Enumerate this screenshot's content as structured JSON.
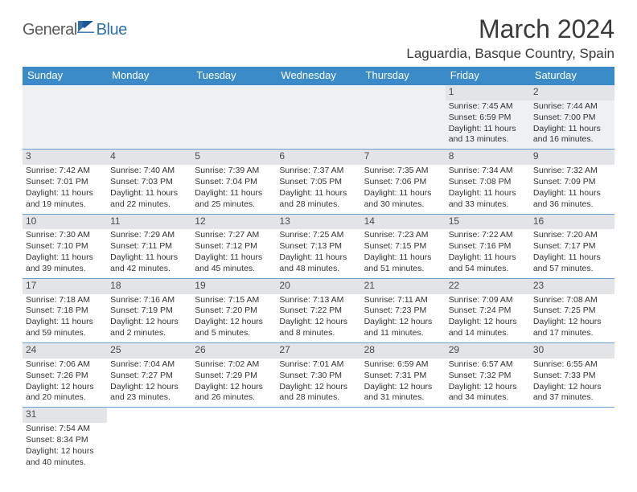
{
  "logo": {
    "word1": "General",
    "word2": "Blue",
    "color1": "#5a5a5a",
    "color2": "#2f6fb0"
  },
  "title": "March 2024",
  "location": "Laguardia, Basque Country, Spain",
  "colors": {
    "header_bg": "#3b8bc9",
    "header_fg": "#ffffff",
    "daynum_bg": "#e2e4e7",
    "rule": "#6a9fd0",
    "firstrow_bg": "#eef0f2"
  },
  "day_headers": [
    "Sunday",
    "Monday",
    "Tuesday",
    "Wednesday",
    "Thursday",
    "Friday",
    "Saturday"
  ],
  "weeks": [
    [
      null,
      null,
      null,
      null,
      null,
      {
        "n": "1",
        "sunrise": "7:45 AM",
        "sunset": "6:59 PM",
        "dl_h": 11,
        "dl_m": 13
      },
      {
        "n": "2",
        "sunrise": "7:44 AM",
        "sunset": "7:00 PM",
        "dl_h": 11,
        "dl_m": 16
      }
    ],
    [
      {
        "n": "3",
        "sunrise": "7:42 AM",
        "sunset": "7:01 PM",
        "dl_h": 11,
        "dl_m": 19
      },
      {
        "n": "4",
        "sunrise": "7:40 AM",
        "sunset": "7:03 PM",
        "dl_h": 11,
        "dl_m": 22
      },
      {
        "n": "5",
        "sunrise": "7:39 AM",
        "sunset": "7:04 PM",
        "dl_h": 11,
        "dl_m": 25
      },
      {
        "n": "6",
        "sunrise": "7:37 AM",
        "sunset": "7:05 PM",
        "dl_h": 11,
        "dl_m": 28
      },
      {
        "n": "7",
        "sunrise": "7:35 AM",
        "sunset": "7:06 PM",
        "dl_h": 11,
        "dl_m": 30
      },
      {
        "n": "8",
        "sunrise": "7:34 AM",
        "sunset": "7:08 PM",
        "dl_h": 11,
        "dl_m": 33
      },
      {
        "n": "9",
        "sunrise": "7:32 AM",
        "sunset": "7:09 PM",
        "dl_h": 11,
        "dl_m": 36
      }
    ],
    [
      {
        "n": "10",
        "sunrise": "7:30 AM",
        "sunset": "7:10 PM",
        "dl_h": 11,
        "dl_m": 39
      },
      {
        "n": "11",
        "sunrise": "7:29 AM",
        "sunset": "7:11 PM",
        "dl_h": 11,
        "dl_m": 42
      },
      {
        "n": "12",
        "sunrise": "7:27 AM",
        "sunset": "7:12 PM",
        "dl_h": 11,
        "dl_m": 45
      },
      {
        "n": "13",
        "sunrise": "7:25 AM",
        "sunset": "7:13 PM",
        "dl_h": 11,
        "dl_m": 48
      },
      {
        "n": "14",
        "sunrise": "7:23 AM",
        "sunset": "7:15 PM",
        "dl_h": 11,
        "dl_m": 51
      },
      {
        "n": "15",
        "sunrise": "7:22 AM",
        "sunset": "7:16 PM",
        "dl_h": 11,
        "dl_m": 54
      },
      {
        "n": "16",
        "sunrise": "7:20 AM",
        "sunset": "7:17 PM",
        "dl_h": 11,
        "dl_m": 57
      }
    ],
    [
      {
        "n": "17",
        "sunrise": "7:18 AM",
        "sunset": "7:18 PM",
        "dl_h": 11,
        "dl_m": 59
      },
      {
        "n": "18",
        "sunrise": "7:16 AM",
        "sunset": "7:19 PM",
        "dl_h": 12,
        "dl_m": 2
      },
      {
        "n": "19",
        "sunrise": "7:15 AM",
        "sunset": "7:20 PM",
        "dl_h": 12,
        "dl_m": 5
      },
      {
        "n": "20",
        "sunrise": "7:13 AM",
        "sunset": "7:22 PM",
        "dl_h": 12,
        "dl_m": 8
      },
      {
        "n": "21",
        "sunrise": "7:11 AM",
        "sunset": "7:23 PM",
        "dl_h": 12,
        "dl_m": 11
      },
      {
        "n": "22",
        "sunrise": "7:09 AM",
        "sunset": "7:24 PM",
        "dl_h": 12,
        "dl_m": 14
      },
      {
        "n": "23",
        "sunrise": "7:08 AM",
        "sunset": "7:25 PM",
        "dl_h": 12,
        "dl_m": 17
      }
    ],
    [
      {
        "n": "24",
        "sunrise": "7:06 AM",
        "sunset": "7:26 PM",
        "dl_h": 12,
        "dl_m": 20
      },
      {
        "n": "25",
        "sunrise": "7:04 AM",
        "sunset": "7:27 PM",
        "dl_h": 12,
        "dl_m": 23
      },
      {
        "n": "26",
        "sunrise": "7:02 AM",
        "sunset": "7:29 PM",
        "dl_h": 12,
        "dl_m": 26
      },
      {
        "n": "27",
        "sunrise": "7:01 AM",
        "sunset": "7:30 PM",
        "dl_h": 12,
        "dl_m": 28
      },
      {
        "n": "28",
        "sunrise": "6:59 AM",
        "sunset": "7:31 PM",
        "dl_h": 12,
        "dl_m": 31
      },
      {
        "n": "29",
        "sunrise": "6:57 AM",
        "sunset": "7:32 PM",
        "dl_h": 12,
        "dl_m": 34
      },
      {
        "n": "30",
        "sunrise": "6:55 AM",
        "sunset": "7:33 PM",
        "dl_h": 12,
        "dl_m": 37
      }
    ],
    [
      {
        "n": "31",
        "sunrise": "7:54 AM",
        "sunset": "8:34 PM",
        "dl_h": 12,
        "dl_m": 40
      },
      null,
      null,
      null,
      null,
      null,
      null
    ]
  ],
  "labels": {
    "sunrise": "Sunrise:",
    "sunset": "Sunset:",
    "daylight": "Daylight:",
    "hours": "hours",
    "and": "and",
    "minutes": "minutes."
  }
}
